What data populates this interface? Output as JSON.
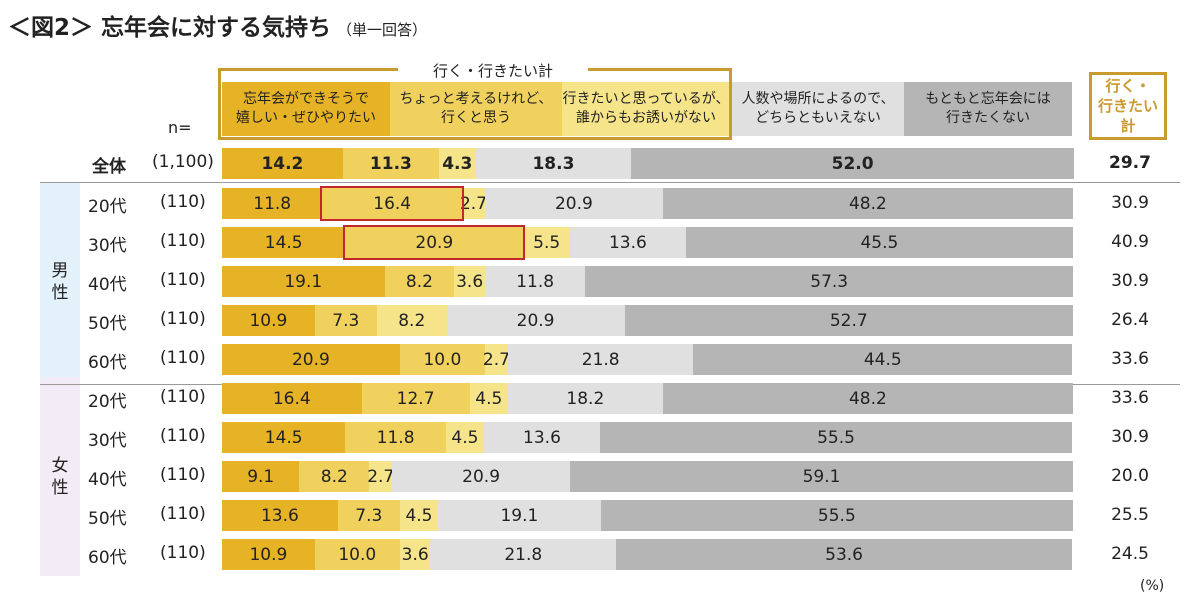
{
  "title": "＜図2＞ 忘年会に対する気持ち",
  "subtitle": "（単一回答）",
  "group_label": "行く・行きたい計",
  "n_label": "n=",
  "total_header": "行く・\n行きたい\n計",
  "unit": "(%)",
  "colors": [
    "#e6b226",
    "#f0d15e",
    "#f5e48a",
    "#e0e0e0",
    "#b5b5b5"
  ],
  "chart_data": {
    "type": "bar",
    "stacked": true,
    "orientation": "horizontal",
    "title": "＜図2＞ 忘年会に対する気持ち",
    "series": [
      {
        "name": "忘年会ができそうで\n嬉しい・ぜひやりたい"
      },
      {
        "name": "ちょっと考えるけれど、\n行くと思う"
      },
      {
        "name": "行きたいと思っているが、\n誰からもお誘いがない"
      },
      {
        "name": "人数や場所によるので、\nどちらともいえない"
      },
      {
        "name": "もともと忘年会には\n行きたくない"
      }
    ],
    "rows": [
      {
        "group": "",
        "label": "全体",
        "n": "(1,100)",
        "values": [
          14.2,
          11.3,
          4.3,
          18.3,
          52.0
        ],
        "total": "29.7"
      },
      {
        "group": "男性",
        "label": "20代",
        "n": "(110)",
        "values": [
          11.8,
          16.4,
          2.7,
          20.9,
          48.2
        ],
        "total": "30.9",
        "highlight": 1
      },
      {
        "group": "男性",
        "label": "30代",
        "n": "(110)",
        "values": [
          14.5,
          20.9,
          5.5,
          13.6,
          45.5
        ],
        "total": "40.9",
        "highlight": 1
      },
      {
        "group": "男性",
        "label": "40代",
        "n": "(110)",
        "values": [
          19.1,
          8.2,
          3.6,
          11.8,
          57.3
        ],
        "total": "30.9"
      },
      {
        "group": "男性",
        "label": "50代",
        "n": "(110)",
        "values": [
          10.9,
          7.3,
          8.2,
          20.9,
          52.7
        ],
        "total": "26.4"
      },
      {
        "group": "男性",
        "label": "60代",
        "n": "(110)",
        "values": [
          20.9,
          10.0,
          2.7,
          21.8,
          44.5
        ],
        "total": "33.6"
      },
      {
        "group": "女性",
        "label": "20代",
        "n": "(110)",
        "values": [
          16.4,
          12.7,
          4.5,
          18.2,
          48.2
        ],
        "total": "33.6"
      },
      {
        "group": "女性",
        "label": "30代",
        "n": "(110)",
        "values": [
          14.5,
          11.8,
          4.5,
          13.6,
          55.5
        ],
        "total": "30.9"
      },
      {
        "group": "女性",
        "label": "40代",
        "n": "(110)",
        "values": [
          9.1,
          8.2,
          2.7,
          20.9,
          59.1
        ],
        "total": "20.0"
      },
      {
        "group": "女性",
        "label": "50代",
        "n": "(110)",
        "values": [
          13.6,
          7.3,
          4.5,
          19.1,
          55.5
        ],
        "total": "25.5"
      },
      {
        "group": "女性",
        "label": "60代",
        "n": "(110)",
        "values": [
          10.9,
          10.0,
          3.6,
          21.8,
          53.6
        ],
        "total": "24.5"
      }
    ],
    "xlim": [
      0,
      100
    ],
    "legend": "top"
  }
}
